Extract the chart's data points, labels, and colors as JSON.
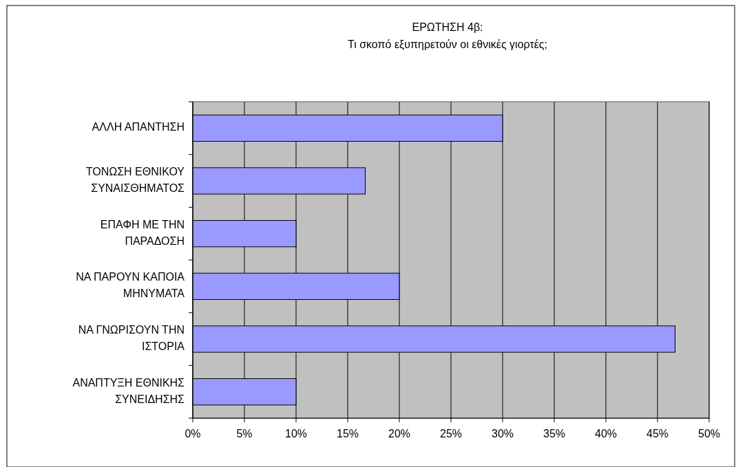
{
  "chart_data": {
    "type": "bar",
    "orientation": "horizontal",
    "title": "ΕΡΩΤΗΣΗ 4β:",
    "subtitle": "Τι σκοπό εξυπηρετούν οι εθνικές γιορτές;",
    "categories": [
      "ΑΛΛΗ ΑΠΑΝΤΗΣΗ",
      "ΤΟΝΩΣΗ ΕΘΝΙΚΟΥ ΣΥΝΑΙΣΘΗΜΑΤΟΣ",
      "ΕΠΑΦΗ ΜΕ ΤΗΝ ΠΑΡΑΔΟΣΗ",
      "ΝΑ ΠΑΡΟΥΝ ΚΑΠΟΙΑ ΜΗΝΥΜΑΤΑ",
      "ΝΑ ΓΝΩΡΙΣΟΥΝ ΤΗΝ ΙΣΤΟΡΙΑ",
      "ΑΝΑΠΤΥΞΗ ΕΘΝΙΚΗΣ ΣΥΝΕΙΔΗΣΗΣ"
    ],
    "values": [
      30,
      16.7,
      10,
      20,
      46.7,
      10
    ],
    "color": "#9999ff",
    "xlim": [
      0,
      50
    ],
    "xticks": [
      {
        "value": 0,
        "label": "0%"
      },
      {
        "value": 5,
        "label": "5%"
      },
      {
        "value": 10,
        "label": "10%"
      },
      {
        "value": 15,
        "label": "15%"
      },
      {
        "value": 20,
        "label": "20%"
      },
      {
        "value": 25,
        "label": "25%"
      },
      {
        "value": 30,
        "label": "30%"
      },
      {
        "value": 35,
        "label": "35%"
      },
      {
        "value": 40,
        "label": "40%"
      },
      {
        "value": 45,
        "label": "45%"
      },
      {
        "value": 50,
        "label": "50%"
      }
    ],
    "grid": "x"
  }
}
